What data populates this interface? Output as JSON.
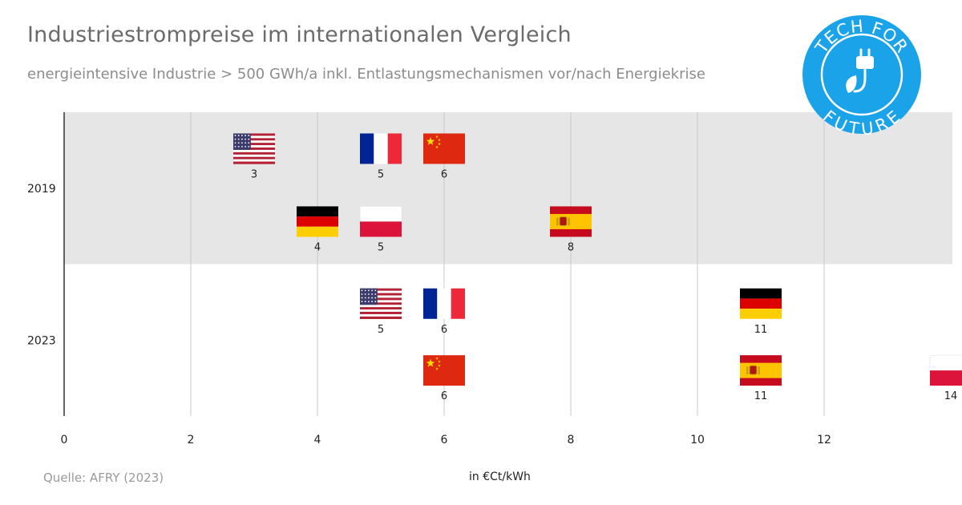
{
  "title": "Industriestrompreise im internationalen Vergleich",
  "subtitle": "energieintensive Industrie > 500 GWh/a inkl. Entlastungsmechanismen vor/nach Energiekrise",
  "source": "Quelle: AFRY (2023)",
  "logo": {
    "text_top": "TECH FOR",
    "text_bottom": "FUTURE",
    "icon": "plug-leaf-icon",
    "color": "#1aa3e8"
  },
  "chart_data": {
    "type": "scatter",
    "xlabel": "in €Ct/kWh",
    "xlim": [
      0,
      14
    ],
    "xticks": [
      0,
      2,
      4,
      6,
      8,
      10,
      12
    ],
    "grid": true,
    "groups": [
      {
        "label": "2019",
        "background": "#e6e6e6",
        "points": [
          {
            "country": "USA",
            "flag": "us",
            "value": 3,
            "label": "3",
            "row": 0
          },
          {
            "country": "Frankreich",
            "flag": "fr",
            "value": 5,
            "label": "5",
            "row": 0
          },
          {
            "country": "China",
            "flag": "cn",
            "value": 6,
            "label": "6",
            "row": 0
          },
          {
            "country": "Deutschland",
            "flag": "de",
            "value": 4,
            "label": "4",
            "row": 1
          },
          {
            "country": "Polen",
            "flag": "pl",
            "value": 5,
            "label": "5",
            "row": 1
          },
          {
            "country": "Spanien",
            "flag": "es",
            "value": 8,
            "label": "8",
            "row": 1
          }
        ]
      },
      {
        "label": "2023",
        "background": "#ffffff",
        "points": [
          {
            "country": "USA",
            "flag": "us",
            "value": 5,
            "label": "5",
            "row": 0
          },
          {
            "country": "Frankreich",
            "flag": "fr",
            "value": 6,
            "label": "6",
            "row": 0
          },
          {
            "country": "Deutschland",
            "flag": "de",
            "value": 11,
            "label": "11",
            "row": 0
          },
          {
            "country": "China",
            "flag": "cn",
            "value": 6,
            "label": "6",
            "row": 1
          },
          {
            "country": "Spanien",
            "flag": "es",
            "value": 11,
            "label": "11",
            "row": 1
          },
          {
            "country": "Polen",
            "flag": "pl",
            "value": 14,
            "label": "14",
            "row": 1
          }
        ]
      }
    ]
  }
}
